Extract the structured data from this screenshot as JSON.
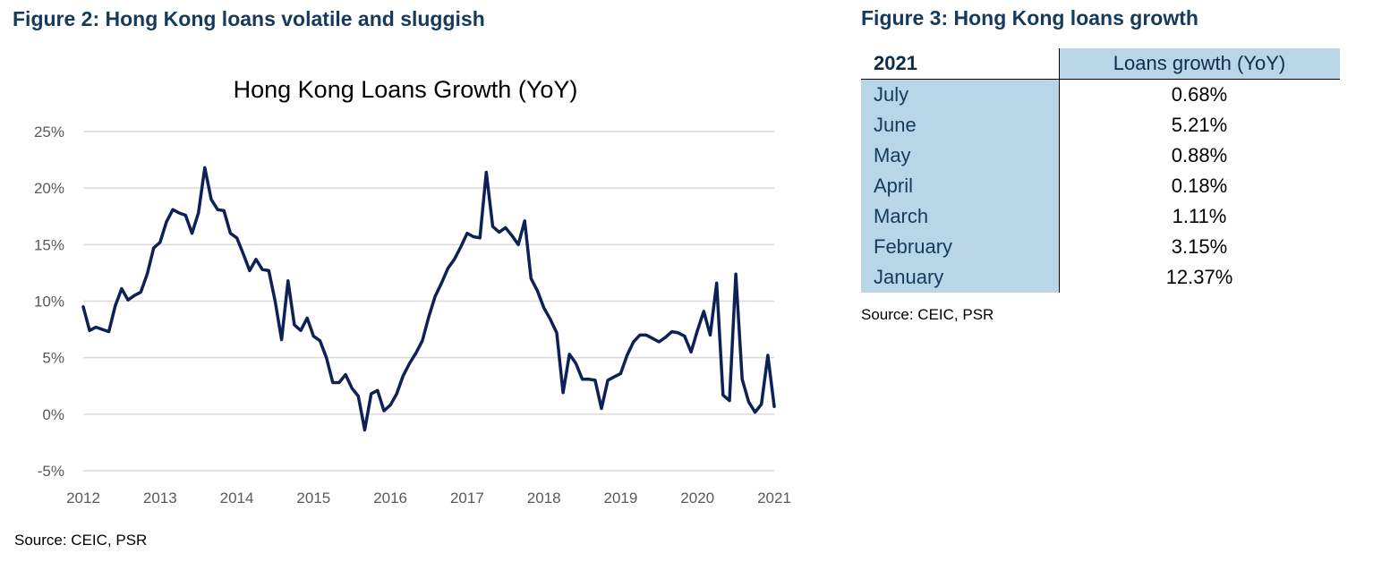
{
  "figure2": {
    "title": "Figure 2: Hong Kong loans volatile and sluggish",
    "source": "Source: CEIC, PSR"
  },
  "figure3": {
    "title": "Figure 3: Hong Kong loans growth",
    "source": "Source: CEIC, PSR",
    "table": {
      "header_year": "2021",
      "header_value": "Loans growth (YoY)",
      "rows": [
        {
          "month": "July",
          "value": "0.68%"
        },
        {
          "month": "June",
          "value": "5.21%"
        },
        {
          "month": "May",
          "value": "0.88%"
        },
        {
          "month": "April",
          "value": "0.18%"
        },
        {
          "month": "March",
          "value": "1.11%"
        },
        {
          "month": "February",
          "value": "3.15%"
        },
        {
          "month": "January",
          "value": "12.37%"
        }
      ]
    }
  },
  "colors": {
    "title": "#163a5c",
    "line": "#0d2157",
    "gridline": "#d9d9d9",
    "table_fill": "#b8d6e8"
  },
  "chart_data": {
    "type": "line",
    "title": "Hong Kong Loans Growth (YoY)",
    "xlabel": "",
    "ylabel": "",
    "x_tick_labels": [
      "2012",
      "2013",
      "2014",
      "2015",
      "2016",
      "2017",
      "2018",
      "2019",
      "2020",
      "2021"
    ],
    "y_tick_labels": [
      "25%",
      "20%",
      "15%",
      "10%",
      "5%",
      "0%",
      "-5%"
    ],
    "y_ticks": [
      25,
      20,
      15,
      10,
      5,
      0,
      -5
    ],
    "xlim": [
      2012,
      2021
    ],
    "ylim": [
      -5,
      25
    ],
    "grid": "horizontal",
    "legend": "none",
    "series": [
      {
        "x": [
          2012.0,
          2012.083,
          2012.167,
          2012.25,
          2012.333,
          2012.417,
          2012.5,
          2012.583,
          2012.667,
          2012.75,
          2012.833,
          2012.917,
          2013.0,
          2013.083,
          2013.167,
          2013.25,
          2013.333,
          2013.417,
          2013.5,
          2013.583,
          2013.667,
          2013.75,
          2013.833,
          2013.917,
          2014.0,
          2014.083,
          2014.167,
          2014.25,
          2014.333,
          2014.417,
          2014.5,
          2014.583,
          2014.667,
          2014.75,
          2014.833,
          2014.917,
          2015.0,
          2015.083,
          2015.167,
          2015.25,
          2015.333,
          2015.417,
          2015.5,
          2015.583,
          2015.667,
          2015.75,
          2015.833,
          2015.917,
          2016.0,
          2016.083,
          2016.167,
          2016.25,
          2016.333,
          2016.417,
          2016.5,
          2016.583,
          2016.667,
          2016.75,
          2016.833,
          2016.917,
          2017.0,
          2017.083,
          2017.167,
          2017.25,
          2017.333,
          2017.417,
          2017.5,
          2017.583,
          2017.667,
          2017.75,
          2017.833,
          2017.917,
          2018.0,
          2018.083,
          2018.167,
          2018.25,
          2018.333,
          2018.417,
          2018.5,
          2018.583,
          2018.667,
          2018.75,
          2018.833,
          2018.917,
          2019.0,
          2019.083,
          2019.167,
          2019.25,
          2019.333,
          2019.417,
          2019.5,
          2019.583,
          2019.667,
          2019.75,
          2019.833,
          2019.917,
          2020.0,
          2020.083,
          2020.167,
          2020.25,
          2020.333,
          2020.417,
          2020.5,
          2020.583,
          2020.667,
          2020.75,
          2020.833,
          2020.917,
          2021.0
        ],
        "y": [
          9.5,
          7.4,
          7.7,
          7.5,
          7.3,
          9.6,
          11.1,
          10.1,
          10.5,
          10.8,
          12.4,
          14.7,
          15.2,
          17.0,
          18.1,
          17.8,
          17.6,
          16.0,
          17.8,
          21.8,
          19.0,
          18.1,
          18.0,
          16.0,
          15.6,
          14.2,
          12.7,
          13.7,
          12.8,
          12.7,
          10.0,
          6.6,
          11.8,
          7.9,
          7.4,
          8.5,
          6.9,
          6.5,
          5.0,
          2.8,
          2.8,
          3.5,
          2.3,
          1.6,
          -1.4,
          1.8,
          2.1,
          0.3,
          0.8,
          1.8,
          3.4,
          4.5,
          5.4,
          6.5,
          8.6,
          10.4,
          11.6,
          12.9,
          13.7,
          14.8,
          16.0,
          15.7,
          15.6,
          21.4,
          16.6,
          16.1,
          16.5,
          15.8,
          15.0,
          17.1,
          12.0,
          10.9,
          9.4,
          8.4,
          7.2,
          1.9,
          5.3,
          4.5,
          3.1,
          3.1,
          3.0,
          0.5,
          3.0,
          3.3,
          3.6,
          5.2,
          6.4,
          7.0,
          7.0,
          6.7,
          6.4,
          6.8,
          7.3,
          7.2,
          6.9,
          5.5,
          7.4,
          9.1,
          7.0,
          11.6,
          1.7,
          1.2,
          12.4,
          3.1,
          1.1,
          0.18,
          0.88,
          5.21,
          0.68
        ]
      }
    ]
  }
}
